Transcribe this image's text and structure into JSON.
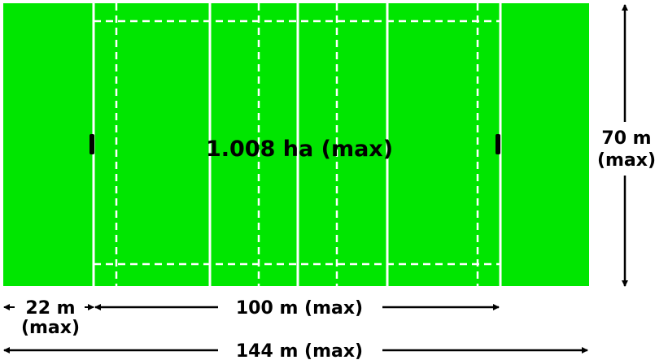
{
  "field": {
    "area_label": "1.008 ha (max)",
    "color": "#00e600",
    "line_color": "#ffffff"
  },
  "dimensions": {
    "height_value": "70 m",
    "height_qualifier": "(max)",
    "in_goal_value": "22 m",
    "in_goal_qualifier": "(max)",
    "field_of_play_label": "100 m (max)",
    "total_length_label": "144 m (max)"
  },
  "colors": {
    "arrow": "#000000",
    "background": "#ffffff"
  }
}
